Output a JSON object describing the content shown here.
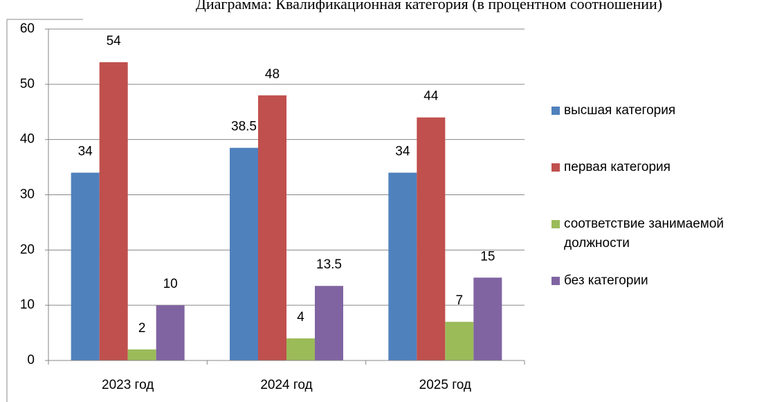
{
  "chart_data": {
    "type": "bar",
    "title": "Диаграмма: Квалификационная категория (в процентном соотношении)",
    "categories": [
      "2023 год",
      "2024 год",
      "2025 год"
    ],
    "series": [
      {
        "name": "высшая категория",
        "color": "#4f81bd",
        "values": [
          34,
          38.5,
          34
        ]
      },
      {
        "name": "первая категория",
        "color": "#c0504d",
        "values": [
          54,
          48,
          44
        ]
      },
      {
        "name": "соответствие занимаемой должности",
        "color": "#9bbb59",
        "values": [
          2,
          4,
          7
        ]
      },
      {
        "name": "без категории",
        "color": "#8064a2",
        "values": [
          10,
          13.5,
          15
        ]
      }
    ],
    "ylim": [
      0,
      60
    ],
    "yticks": [
      0,
      10,
      20,
      30,
      40,
      50,
      60
    ],
    "grid": true,
    "legend": "right"
  }
}
